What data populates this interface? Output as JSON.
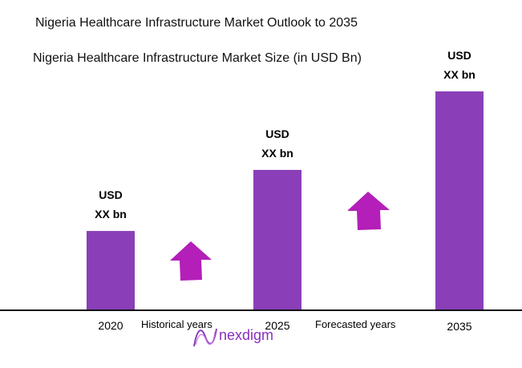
{
  "chart_data": {
    "type": "bar",
    "title": "Nigeria Healthcare Infrastructure Market Outlook to 2035",
    "subtitle": "Nigeria Healthcare Infrastructure Market Size (in USD Bn)",
    "categories": [
      "2020",
      "2025",
      "2035"
    ],
    "relative_values_percent_of_max": [
      36,
      64,
      100
    ],
    "data_labels": [
      [
        "USD",
        "XX bn"
      ],
      [
        "USD",
        "XX bn"
      ],
      [
        "USD",
        "XX bn"
      ]
    ],
    "period_labels": [
      "Historical years",
      "Forecasted years"
    ],
    "annotations": [
      "up-arrow",
      "up-arrow"
    ],
    "grid": false,
    "bar_color": "#8a3fb8",
    "arrow_color": "#b31fb8"
  },
  "logo": {
    "text": "nexdigm"
  }
}
